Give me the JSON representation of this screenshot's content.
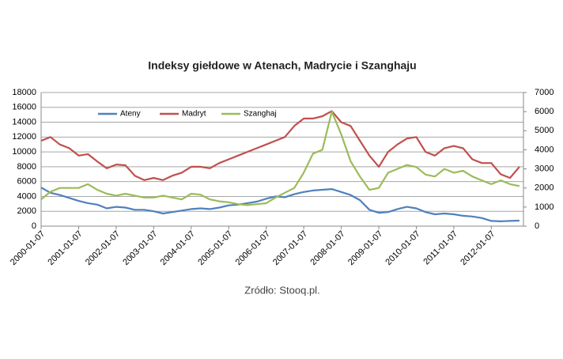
{
  "chart_data": {
    "type": "line",
    "title": "Indeksy giełdowe w Atenach, Madrycie i Szanghaju",
    "source": "Zródło: Stooq.pl.",
    "x": [
      "2000-01-07",
      "2000-04-07",
      "2000-07-07",
      "2000-10-07",
      "2001-01-07",
      "2001-04-07",
      "2001-07-07",
      "2001-10-07",
      "2002-01-07",
      "2002-04-07",
      "2002-07-07",
      "2002-10-07",
      "2003-01-07",
      "2003-04-07",
      "2003-07-07",
      "2003-10-07",
      "2004-01-07",
      "2004-04-07",
      "2004-07-07",
      "2004-10-07",
      "2005-01-07",
      "2005-04-07",
      "2005-07-07",
      "2005-10-07",
      "2006-01-07",
      "2006-04-07",
      "2006-07-07",
      "2006-10-07",
      "2007-01-07",
      "2007-04-07",
      "2007-07-07",
      "2007-10-07",
      "2008-01-07",
      "2008-04-07",
      "2008-07-07",
      "2008-10-07",
      "2009-01-07",
      "2009-04-07",
      "2009-07-07",
      "2009-10-07",
      "2010-01-07",
      "2010-04-07",
      "2010-07-07",
      "2010-10-07",
      "2011-01-07",
      "2011-04-07",
      "2011-07-07",
      "2011-10-07",
      "2012-01-07",
      "2012-04-07",
      "2012-07-07",
      "2012-10-07"
    ],
    "series": [
      {
        "name": "Ateny",
        "color": "#4f81bd",
        "values": [
          5200,
          4500,
          4200,
          3800,
          3400,
          3100,
          2900,
          2400,
          2600,
          2500,
          2200,
          2200,
          2000,
          1700,
          1900,
          2100,
          2300,
          2400,
          2300,
          2500,
          2800,
          2900,
          3100,
          3300,
          3700,
          4000,
          3900,
          4300,
          4600,
          4800,
          4900,
          5000,
          4600,
          4200,
          3500,
          2200,
          1800,
          1900,
          2300,
          2600,
          2400,
          1900,
          1600,
          1700,
          1600,
          1400,
          1300,
          1100,
          700,
          650,
          700,
          750
        ]
      },
      {
        "name": "Madryt",
        "color": "#c0504d",
        "values": [
          11500,
          12000,
          11000,
          10500,
          9500,
          9700,
          8700,
          7800,
          8300,
          8200,
          6800,
          6200,
          6500,
          6200,
          6800,
          7200,
          8000,
          8000,
          7800,
          8500,
          9000,
          9500,
          10000,
          10500,
          11000,
          11500,
          12000,
          13500,
          14500,
          14500,
          14800,
          15500,
          14000,
          13500,
          11500,
          9500,
          8000,
          10000,
          11000,
          11800,
          12000,
          10000,
          9500,
          10500,
          10800,
          10500,
          9000,
          8500,
          8500,
          7000,
          6500,
          8000
        ]
      },
      {
        "name": "Szanghaj",
        "color": "#9bbb59",
        "axis": "y2",
        "values": [
          1400,
          1800,
          2000,
          2000,
          2000,
          2200,
          1900,
          1700,
          1600,
          1700,
          1600,
          1500,
          1500,
          1600,
          1500,
          1400,
          1700,
          1650,
          1400,
          1300,
          1250,
          1150,
          1100,
          1150,
          1200,
          1500,
          1750,
          2000,
          2800,
          3800,
          4000,
          6000,
          4800,
          3400,
          2600,
          1900,
          2000,
          2800,
          3000,
          3200,
          3100,
          2700,
          2600,
          3000,
          2800,
          2900,
          2600,
          2400,
          2200,
          2400,
          2200,
          2100
        ]
      }
    ],
    "xlim": [
      "2000-01-07",
      "2012-11-15"
    ],
    "xticks": [
      "2000-01-07",
      "2001-01-07",
      "2002-01-07",
      "2003-01-07",
      "2004-01-07",
      "2005-01-07",
      "2006-01-07",
      "2007-01-07",
      "2008-01-07",
      "2009-01-07",
      "2010-01-07",
      "2011-01-07",
      "2012-01-07"
    ],
    "ylim": [
      0,
      18000
    ],
    "yticks": [
      0,
      2000,
      4000,
      6000,
      8000,
      10000,
      12000,
      14000,
      16000,
      18000
    ],
    "y2lim": [
      0,
      7000
    ],
    "y2ticks": [
      0,
      1000,
      2000,
      3000,
      4000,
      5000,
      6000,
      7000
    ],
    "grid": true,
    "legend": "top-left"
  }
}
